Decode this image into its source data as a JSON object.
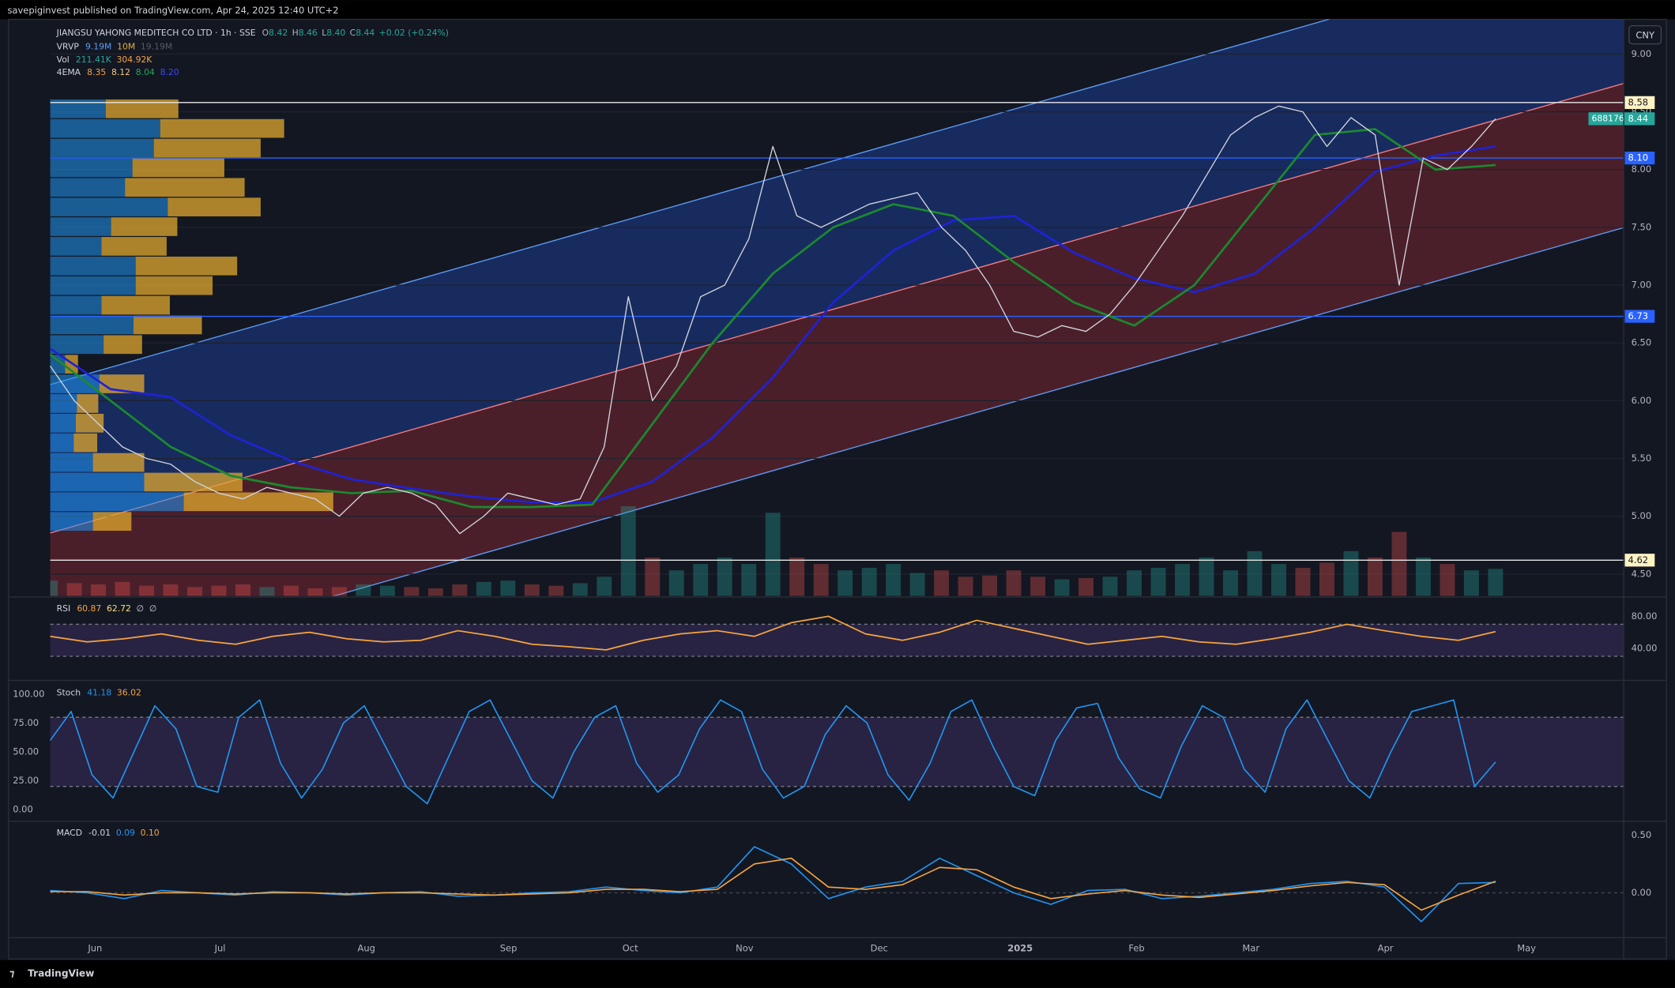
{
  "header": "savepiginvest published on TradingView.com, Apr 24, 2025 12:40 UTC+2",
  "legend": {
    "symbol": "JIANGSU YAHONG MEDITECH CO LTD · 1h · SSE",
    "ohlc": [
      {
        "key": "O",
        "value": "8.42"
      },
      {
        "key": "H",
        "value": "8.46"
      },
      {
        "key": "L",
        "value": "8.40"
      },
      {
        "key": "C",
        "value": "8.44"
      }
    ],
    "change": "+0.02 (+0.24%)",
    "vrvp": {
      "name": "VRVP",
      "values": [
        "9.19M",
        "10M",
        "19.19M"
      ]
    },
    "vol": {
      "name": "Vol",
      "values": [
        "211.41K",
        "304.92K"
      ]
    },
    "ema": {
      "name": "4EMA",
      "values": [
        "8.35",
        "8.12",
        "8.04",
        "8.20"
      ]
    }
  },
  "currency": "CNY",
  "price_axis": {
    "ylim": [
      4.31,
      9.3
    ],
    "ticks": [
      {
        "value": 9,
        "label": "9.00"
      },
      {
        "value": 8.5,
        "label": "8.50"
      },
      {
        "value": 8,
        "label": "8.00"
      },
      {
        "value": 7.5,
        "label": "7.50"
      },
      {
        "value": 7,
        "label": "7.00"
      },
      {
        "value": 6.5,
        "label": "6.50"
      },
      {
        "value": 6,
        "label": "6.00"
      },
      {
        "value": 5.5,
        "label": "5.50"
      },
      {
        "value": 5,
        "label": "5.00"
      },
      {
        "value": 4.5,
        "label": "4.50"
      }
    ]
  },
  "levels": [
    8.58,
    {
      "value": 8.1,
      "label": "8.10"
    },
    6.73,
    4.62
  ],
  "last_price": {
    "symbol": "688176",
    "value": 8.44
  },
  "price": {
    "color": "#d1d4dc",
    "values": [
      6.3,
      6.0,
      5.8,
      5.6,
      5.5,
      5.45,
      5.3,
      5.2,
      5.15,
      5.25,
      5.2,
      5.15,
      5.0,
      5.2,
      5.25,
      5.2,
      5.1,
      4.85,
      5.0,
      5.2,
      5.15,
      5.1,
      5.15,
      5.6,
      6.9,
      6.0,
      6.3,
      6.9,
      7.0,
      7.4,
      8.2,
      7.6,
      7.5,
      7.6,
      7.7,
      7.75,
      7.8,
      7.5,
      7.3,
      7.0,
      6.6,
      6.55,
      6.65,
      6.6,
      6.75,
      7.0,
      7.3,
      7.6,
      7.95,
      8.3,
      8.45,
      8.55,
      8.5,
      8.2,
      8.45,
      8.3,
      7.0,
      8.1,
      8.0,
      8.2,
      8.44
    ]
  },
  "ema_lines": [
    {
      "color": "#1f22d6",
      "values": [
        6.45,
        6.1,
        6.03,
        5.7,
        5.48,
        5.32,
        5.24,
        5.17,
        5.12,
        5.12,
        5.3,
        5.68,
        6.2,
        6.85,
        7.3,
        7.56,
        7.6,
        7.28,
        7.06,
        6.94,
        7.1,
        7.5,
        7.98,
        8.12,
        8.2
      ]
    },
    {
      "color": "#1b8a2e",
      "values": [
        6.4,
        6.0,
        5.6,
        5.35,
        5.25,
        5.2,
        5.22,
        5.08,
        5.08,
        5.1,
        5.8,
        6.5,
        7.1,
        7.5,
        7.7,
        7.6,
        7.2,
        6.85,
        6.65,
        7.0,
        7.65,
        8.3,
        8.35,
        8.0,
        8.04
      ]
    }
  ],
  "volume": {
    "max": 1000,
    "values": [
      120,
      100,
      90,
      110,
      80,
      90,
      70,
      80,
      90,
      70,
      80,
      60,
      70,
      90,
      80,
      70,
      60,
      90,
      110,
      120,
      90,
      80,
      100,
      150,
      700,
      300,
      200,
      250,
      300,
      250,
      650,
      300,
      250,
      200,
      220,
      250,
      180,
      200,
      150,
      160,
      200,
      150,
      130,
      140,
      150,
      200,
      220,
      250,
      300,
      200,
      350,
      250,
      220,
      260,
      350,
      300,
      500,
      300,
      250,
      200,
      211.41
    ]
  },
  "volume_profile": [
    {
      "up": 52,
      "down": 68
    },
    {
      "up": 103,
      "down": 116
    },
    {
      "up": 97,
      "down": 100
    },
    {
      "up": 77,
      "down": 86
    },
    {
      "up": 70,
      "down": 112
    },
    {
      "up": 110,
      "down": 87
    },
    {
      "up": 57,
      "down": 62
    },
    {
      "up": 48,
      "down": 61
    },
    {
      "up": 80,
      "down": 95
    },
    {
      "up": 80,
      "down": 72
    },
    {
      "up": 48,
      "down": 64
    },
    {
      "up": 78,
      "down": 64
    },
    {
      "up": 50,
      "down": 36
    },
    {
      "up": 14,
      "down": 12
    },
    {
      "up": 46,
      "down": 42
    },
    {
      "up": 25,
      "down": 20
    },
    {
      "up": 24,
      "down": 26
    },
    {
      "up": 22,
      "down": 22
    },
    {
      "up": 40,
      "down": 48
    },
    {
      "up": 88,
      "down": 92
    },
    {
      "up": 125,
      "down": 140
    },
    {
      "up": 40,
      "down": 36
    }
  ],
  "rsi": {
    "name": "RSI",
    "labels": [
      "60.87",
      "62.72",
      "∅",
      "∅"
    ],
    "ylim": [
      1.3,
      102.7
    ],
    "bands": [
      30,
      70
    ],
    "ticks": [
      {
        "value": 80,
        "label": "80.00"
      },
      {
        "value": 40,
        "label": "40.00"
      }
    ],
    "values": [
      55,
      48,
      52,
      58,
      50,
      45,
      55,
      60,
      52,
      48,
      50,
      62,
      55,
      45,
      42,
      38,
      50,
      58,
      62,
      55,
      72,
      80,
      58,
      50,
      60,
      75,
      65,
      55,
      45,
      50,
      55,
      48,
      45,
      52,
      60,
      70,
      62,
      55,
      50,
      60.87
    ]
  },
  "stoch": {
    "name": "Stoch",
    "labels": [
      "41.18",
      "36.02"
    ],
    "ylim": [
      -9.3,
      111.1
    ],
    "bands": [
      20,
      80
    ],
    "ticks": [
      {
        "value": 100,
        "label": "100.00"
      },
      {
        "value": 75,
        "label": "75.00"
      },
      {
        "value": 50,
        "label": "50.00"
      },
      {
        "value": 25,
        "label": "25.00"
      },
      {
        "value": 0,
        "label": "0.00"
      }
    ],
    "values": [
      60,
      85,
      30,
      10,
      50,
      90,
      70,
      20,
      15,
      80,
      95,
      40,
      10,
      35,
      75,
      90,
      55,
      20,
      5,
      45,
      85,
      95,
      60,
      25,
      10,
      50,
      80,
      90,
      40,
      15,
      30,
      70,
      95,
      85,
      35,
      10,
      20,
      65,
      90,
      75,
      30,
      8,
      40,
      85,
      95,
      55,
      20,
      12,
      60,
      88,
      92,
      45,
      18,
      10,
      55,
      90,
      80,
      35,
      15,
      70,
      95,
      60,
      25,
      10,
      50,
      85,
      90,
      95,
      20,
      41.18
    ]
  },
  "macd": {
    "name": "MACD",
    "labels": [
      "-0.01",
      "0.09",
      "0.10"
    ],
    "ylim": [
      -0.389,
      0.611
    ],
    "ticks": [
      {
        "value": 0.5,
        "label": "0.50"
      },
      {
        "value": 0,
        "label": "0.00"
      }
    ],
    "line": [
      0.02,
      0.0,
      -0.05,
      0.02,
      0.0,
      -0.02,
      0.01,
      0.0,
      -0.02,
      0.0,
      0.01,
      -0.03,
      -0.02,
      0.0,
      0.01,
      0.05,
      0.02,
      0.0,
      0.05,
      0.4,
      0.25,
      -0.05,
      0.05,
      0.1,
      0.3,
      0.15,
      0.0,
      -0.1,
      0.02,
      0.03,
      -0.05,
      -0.03,
      0.0,
      0.03,
      0.08,
      0.1,
      0.05,
      -0.25,
      0.08,
      0.09
    ],
    "signal": [
      0.01,
      0.01,
      -0.02,
      0.0,
      0.0,
      -0.01,
      0.0,
      0.0,
      -0.01,
      0.0,
      0.0,
      -0.01,
      -0.02,
      -0.01,
      0.0,
      0.03,
      0.03,
      0.01,
      0.03,
      0.25,
      0.3,
      0.05,
      0.03,
      0.07,
      0.22,
      0.2,
      0.05,
      -0.05,
      -0.01,
      0.02,
      -0.02,
      -0.04,
      -0.01,
      0.02,
      0.06,
      0.09,
      0.07,
      -0.15,
      -0.02,
      0.1
    ]
  },
  "months": [
    "Jun",
    "Jul",
    "Aug",
    "Sep",
    "Oct",
    "Nov",
    "Dec",
    "2025",
    "Feb",
    "Mar",
    "Apr",
    "May"
  ],
  "footer": "TradingView"
}
